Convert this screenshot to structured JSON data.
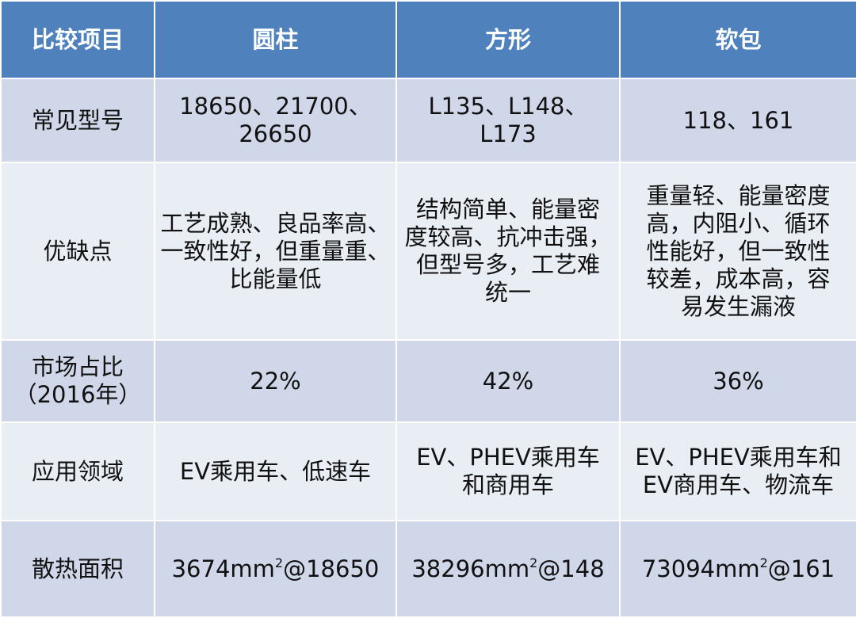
{
  "header": {
    "item": "比较项目",
    "col1": "圆柱",
    "col2": "方形",
    "col3": "软包"
  },
  "rows": [
    {
      "label": [
        "常见型号"
      ],
      "c1": [
        "18650、21700、",
        "26650"
      ],
      "c2": [
        "L135、L148、",
        "L173"
      ],
      "c3": [
        "118、161"
      ]
    },
    {
      "label": [
        "优缺点"
      ],
      "c1": [
        "工艺成熟、良品率高、",
        "一致性好，但重量重、",
        "比能量低"
      ],
      "c2": [
        "结构简单、能量密",
        "度较高、抗冲击强，",
        "但型号多，工艺难",
        "统一"
      ],
      "c3": [
        "重量轻、能量密度",
        "高，内阻小、循环",
        "性能好，但一致性",
        "较差，成本高，容",
        "易发生漏液"
      ]
    },
    {
      "label": [
        "市场占比",
        "（2016年）"
      ],
      "c1": [
        "22%"
      ],
      "c2": [
        "42%"
      ],
      "c3": [
        "36%"
      ]
    },
    {
      "label": [
        "应用领域"
      ],
      "c1": [
        "EV乘用车、低速车"
      ],
      "c2": [
        "EV、PHEV乘用车",
        "和商用车"
      ],
      "c3": [
        "EV、PHEV乘用车和",
        "EV商用车、物流车"
      ]
    }
  ],
  "heat": {
    "label": "散热面积",
    "c1": {
      "pre": "3674mm",
      "sup": "2",
      "post": "@18650"
    },
    "c2": {
      "pre": "38296mm",
      "sup": "2",
      "post": "@148"
    },
    "c3": {
      "pre": "73094mm",
      "sup": "2",
      "post": "@161"
    }
  }
}
